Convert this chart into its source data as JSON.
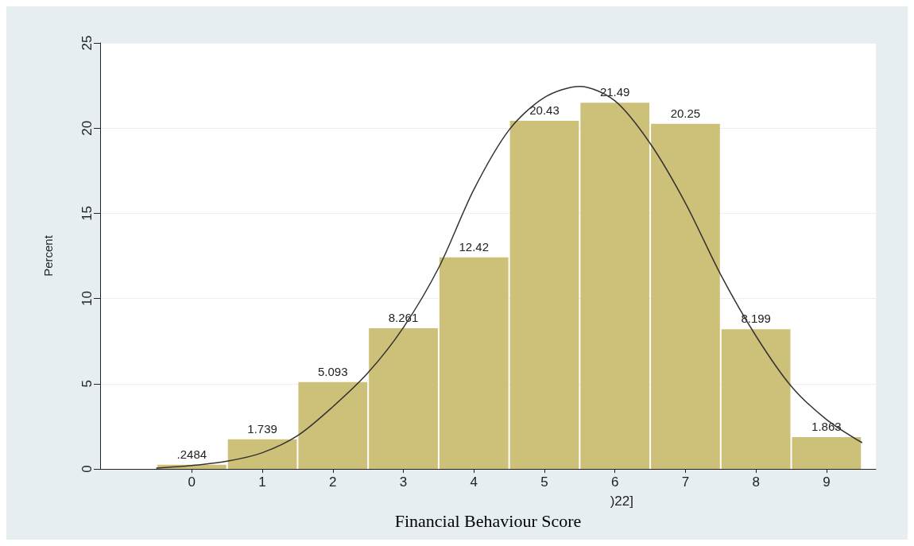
{
  "chart_data": {
    "type": "histogram",
    "ylabel": "Percent",
    "xlabel": "Financial Behaviour Score",
    "annotations": [
      ")22]"
    ],
    "bins": [
      -0.5,
      0.5,
      1.5,
      2.5,
      3.5,
      4.5,
      5.5,
      6.5,
      7.5,
      8.5,
      9.5
    ],
    "values": [
      0.2484,
      1.739,
      5.093,
      8.261,
      12.42,
      20.43,
      21.49,
      20.25,
      8.199,
      1.863
    ],
    "value_labels": [
      ".2484",
      "1.739",
      "5.093",
      "8.261",
      "12.42",
      "20.43",
      "21.49",
      "20.25",
      "8.199",
      "1.863"
    ],
    "color": "#cdc078",
    "series": [
      {
        "type": "line",
        "color": "#333333",
        "x": [
          -0.5,
          0,
          0.5,
          1,
          1.5,
          2,
          2.5,
          3,
          3.5,
          4,
          4.5,
          5,
          5.5,
          6,
          6.5,
          7,
          7.5,
          8,
          8.5,
          9,
          9.5
        ],
        "values": [
          0.05,
          0.2,
          0.45,
          0.95,
          1.95,
          3.65,
          5.65,
          8.3,
          11.8,
          16.4,
          19.9,
          21.8,
          22.45,
          21.6,
          19.1,
          15.6,
          11.4,
          7.8,
          4.85,
          2.9,
          1.55
        ]
      }
    ],
    "xlim": [
      -1.3,
      9.7
    ],
    "xticks": [
      0,
      1,
      2,
      3,
      4,
      5,
      6,
      7,
      8,
      9
    ],
    "ylim": [
      0,
      25
    ],
    "yticks": [
      0,
      5,
      10,
      15,
      20,
      25
    ],
    "grid": "y",
    "marker": "none",
    "line_style": "solid"
  }
}
